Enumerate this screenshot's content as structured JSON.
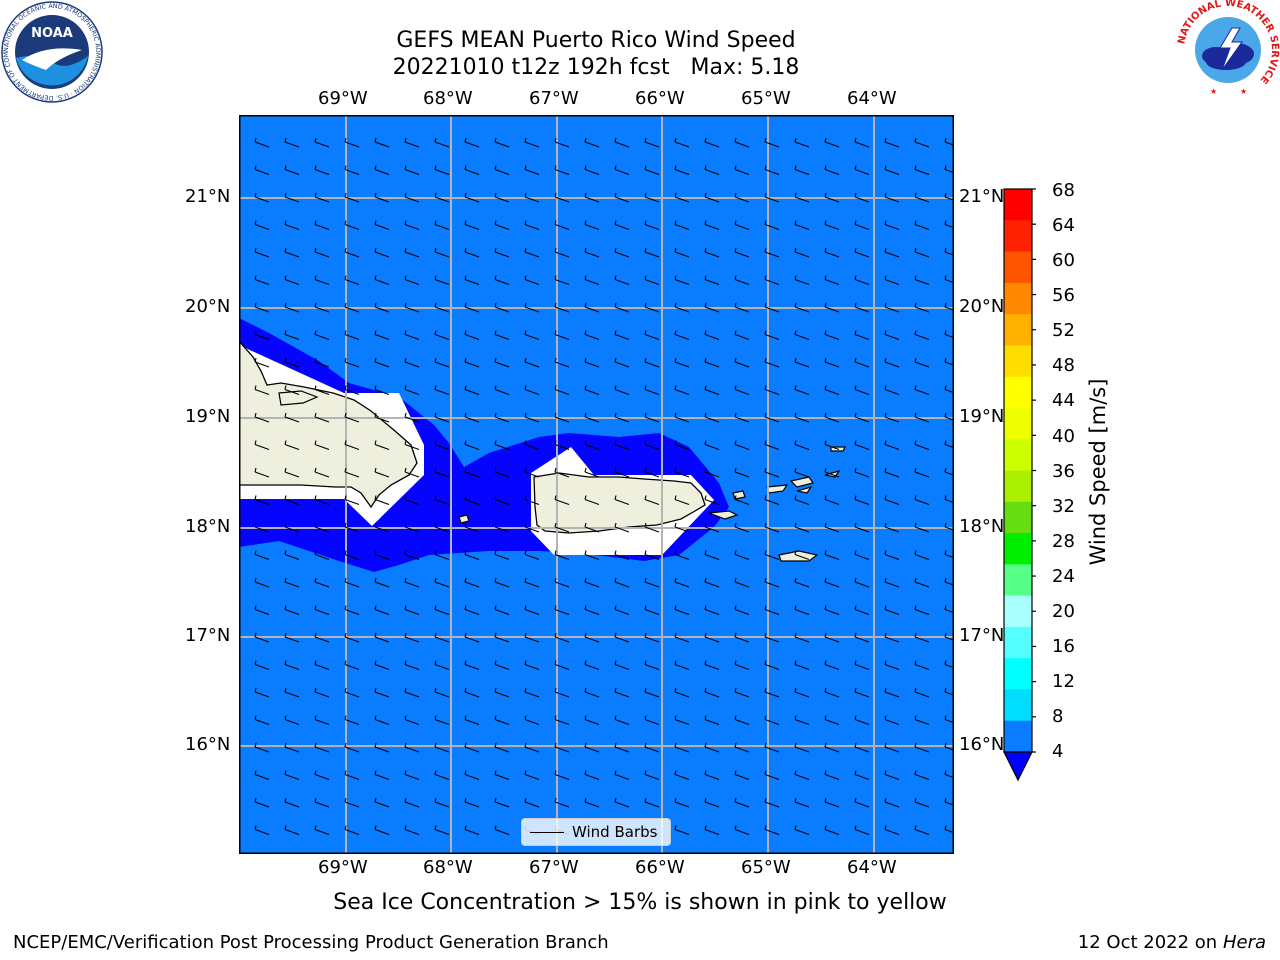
{
  "header": {
    "title_line1": "GEFS MEAN Puerto Rico Wind Speed",
    "title_line2": "20221010 t12z 192h fcst   Max: 5.18"
  },
  "logos": {
    "noaa_text": "NOAA",
    "noaa_ring_text": "NATIONAL OCEANIC AND ATMOSPHERIC ADMINISTRATION · U.S. DEPARTMENT OF COMMERCE",
    "nws_ring_text": "NATIONAL WEATHER SERVICE"
  },
  "map": {
    "lon_labels": [
      "69°W",
      "68°W",
      "67°W",
      "66°W",
      "65°W",
      "64°W"
    ],
    "lat_labels": [
      "21°N",
      "20°N",
      "19°N",
      "18°N",
      "17°N",
      "16°N"
    ],
    "colors": {
      "ocean": "#0a7cff",
      "band": "#0505ff",
      "land": "#efefde",
      "grid": "#b4b4b4"
    }
  },
  "legend": {
    "label": "Wind Barbs"
  },
  "colorbar": {
    "title": "Wind Speed [m/s]",
    "ticks": [
      "68",
      "64",
      "60",
      "56",
      "52",
      "48",
      "44",
      "40",
      "36",
      "32",
      "28",
      "24",
      "20",
      "16",
      "12",
      "8",
      "4"
    ],
    "colors": [
      "#ff0000",
      "#ff2200",
      "#ff5500",
      "#ff8800",
      "#ffb000",
      "#ffdd00",
      "#ffff00",
      "#eeff00",
      "#ccff00",
      "#aaf000",
      "#66dd11",
      "#00ee00",
      "#55ff88",
      "#aaffff",
      "#55ffff",
      "#00ffff",
      "#00ddff",
      "#0a7cff"
    ],
    "under_color": "#0000ff"
  },
  "caption": "Sea Ice Concentration > 15% is shown in pink to yellow",
  "footer": {
    "left": "NCEP/EMC/Verification Post Processing Product Generation Branch",
    "right_prefix": "12 Oct 2022 on ",
    "right_italic": "Hera"
  }
}
